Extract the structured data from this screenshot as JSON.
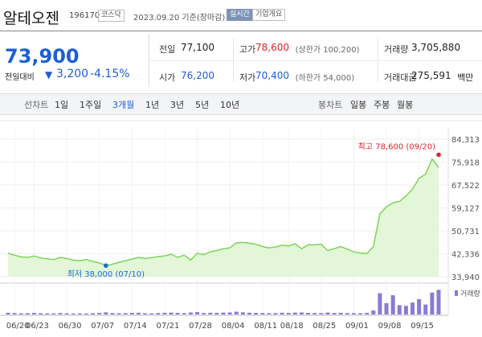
{
  "header": {
    "name": "알테오젠",
    "code": "196170",
    "market": "코스닥",
    "date": "2023.09.20 기준(장마감)",
    "realtime": "실시간",
    "company_info": "기업개요"
  },
  "quote": {
    "price": "73,900",
    "change_label": "전일대비",
    "change": "3,200",
    "change_pct": "-4.15%"
  },
  "stats": [
    {
      "label": "전일",
      "value": "77,100"
    },
    {
      "label": "고가",
      "value": "78,600",
      "note": "(상한가 100,200)"
    },
    {
      "label": "거래량",
      "value": "3,705,880"
    },
    {
      "label": "시가",
      "value": "76,200"
    },
    {
      "label": "저가",
      "value": "70,400",
      "note": "(하한가 54,000)"
    },
    {
      "label": "거래대금",
      "value": "275,591",
      "unit": "백만"
    }
  ],
  "tabs": {
    "line_label": "선차트",
    "line": [
      "1일",
      "1주일",
      "3개월",
      "1년",
      "3년",
      "5년",
      "10년"
    ],
    "candle_label": "봉차트",
    "candle": [
      "일봉",
      "주봉",
      "월봉"
    ]
  },
  "chart_data": {
    "type": "line",
    "color": "#7fd35a",
    "fill": "#e3f6d8",
    "x": [
      "06/19",
      "06/20",
      "06/21",
      "06/22",
      "06/23",
      "06/26",
      "06/27",
      "06/28",
      "06/29",
      "06/30",
      "07/03",
      "07/04",
      "07/05",
      "07/06",
      "07/07",
      "07/10",
      "07/11",
      "07/12",
      "07/13",
      "07/14",
      "07/17",
      "07/18",
      "07/19",
      "07/20",
      "07/21",
      "07/24",
      "07/25",
      "07/26",
      "07/27",
      "07/28",
      "07/31",
      "08/01",
      "08/02",
      "08/03",
      "08/04",
      "08/07",
      "08/08",
      "08/09",
      "08/10",
      "08/11",
      "08/14",
      "08/16",
      "08/17",
      "08/18",
      "08/21",
      "08/22",
      "08/23",
      "08/24",
      "08/25",
      "08/28",
      "08/29",
      "08/30",
      "08/31",
      "09/01",
      "09/04",
      "09/05",
      "09/06",
      "09/07",
      "09/08",
      "09/11",
      "09/12",
      "09/13",
      "09/14",
      "09/15",
      "09/18",
      "09/19",
      "09/20"
    ],
    "values": [
      42600,
      41800,
      41200,
      41000,
      41500,
      40800,
      40500,
      40200,
      41000,
      40600,
      40000,
      39800,
      40200,
      39500,
      39000,
      38000,
      38500,
      39200,
      39800,
      40400,
      41000,
      40600,
      40900,
      41300,
      41500,
      42200,
      41000,
      41800,
      40000,
      42500,
      42000,
      43000,
      43500,
      44200,
      44500,
      46300,
      46500,
      46200,
      45800,
      45000,
      44500,
      44800,
      45500,
      45200,
      46000,
      44200,
      45600,
      45600,
      45800,
      43500,
      44200,
      45000,
      44000,
      43000,
      42600,
      42400,
      45000,
      57000,
      59500,
      61000,
      61500,
      63500,
      66000,
      70000,
      71500,
      77100,
      73900
    ],
    "xticks": [
      "06/20",
      "06/23",
      "06/30",
      "07/07",
      "07/14",
      "07/21",
      "07/28",
      "08/04",
      "08/11",
      "08/18",
      "08/25",
      "09/01",
      "09/08",
      "09/15"
    ],
    "ylim": [
      33940,
      84313
    ],
    "yticks": [
      {
        "value": 33940,
        "label": "33,940"
      },
      {
        "value": 42336,
        "label": "42,336"
      },
      {
        "value": 50731,
        "label": "50,731"
      },
      {
        "value": 59127,
        "label": "59,127"
      },
      {
        "value": 67522,
        "label": "67,522"
      },
      {
        "value": 75918,
        "label": "75,918"
      },
      {
        "value": 84313,
        "label": "84,313"
      }
    ],
    "grid": true,
    "annotations": [
      {
        "text": "최고 78,600 (09/20)",
        "x": "09/20",
        "value": 78600,
        "color": "#e0242b"
      },
      {
        "text": "최저 38,000 (07/10)",
        "x": "07/10",
        "value": 38000,
        "color": "#1d6ad6"
      }
    ],
    "volume": {
      "name": "거래량",
      "color": "#8b7bd1",
      "ylim": [
        0,
        4000000
      ],
      "values": [
        260000,
        210000,
        180000,
        200000,
        240000,
        190000,
        170000,
        160000,
        220000,
        180000,
        150000,
        170000,
        160000,
        190000,
        230000,
        320000,
        210000,
        180000,
        200000,
        230000,
        260000,
        190000,
        170000,
        210000,
        250000,
        280000,
        240000,
        200000,
        300000,
        350000,
        220000,
        260000,
        240000,
        280000,
        300000,
        420000,
        330000,
        260000,
        240000,
        220000,
        200000,
        210000,
        260000,
        230000,
        280000,
        300000,
        240000,
        220000,
        210000,
        290000,
        230000,
        250000,
        210000,
        200000,
        190000,
        240000,
        600000,
        3200000,
        1700000,
        2900000,
        1400000,
        1300000,
        1800000,
        2300000,
        1500000,
        3300000,
        3705880
      ]
    }
  }
}
